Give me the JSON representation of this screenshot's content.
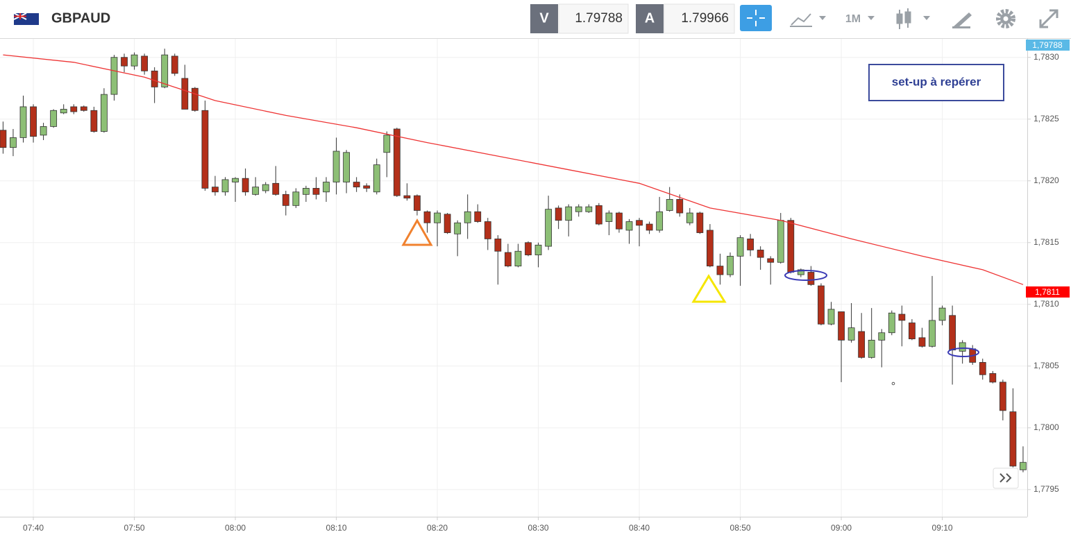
{
  "toolbar": {
    "symbol": "GBPAUD",
    "bid_label": "V",
    "bid": "1.79788",
    "ask_label": "A",
    "ask": "1.79966",
    "timeframe": "1M"
  },
  "chart_data": {
    "type": "candlestick",
    "categories": [
      "07:37",
      "07:38",
      "07:39",
      "07:40",
      "07:41",
      "07:42",
      "07:43",
      "07:44",
      "07:45",
      "07:46",
      "07:47",
      "07:48",
      "07:49",
      "07:50",
      "07:51",
      "07:52",
      "07:53",
      "07:54",
      "07:55",
      "07:56",
      "07:57",
      "07:58",
      "07:59",
      "08:00",
      "08:01",
      "08:02",
      "08:03",
      "08:04",
      "08:05",
      "08:06",
      "08:07",
      "08:08",
      "08:09",
      "08:10",
      "08:11",
      "08:12",
      "08:13",
      "08:14",
      "08:15",
      "08:16",
      "08:17",
      "08:18",
      "08:19",
      "08:20",
      "08:21",
      "08:22",
      "08:23",
      "08:24",
      "08:25",
      "08:26",
      "08:27",
      "08:28",
      "08:29",
      "08:30",
      "08:31",
      "08:32",
      "08:33",
      "08:34",
      "08:35",
      "08:36",
      "08:37",
      "08:38",
      "08:39",
      "08:40",
      "08:41",
      "08:42",
      "08:43",
      "08:44",
      "08:45",
      "08:46",
      "08:47",
      "08:48",
      "08:49",
      "08:50",
      "08:51",
      "08:52",
      "08:53",
      "08:54",
      "08:55",
      "08:56",
      "08:57",
      "08:58",
      "08:59",
      "09:00",
      "09:01",
      "09:02",
      "09:03",
      "09:04",
      "09:05",
      "09:06",
      "09:07",
      "09:08",
      "09:09",
      "09:10",
      "09:11",
      "09:12",
      "09:13",
      "09:14",
      "09:15",
      "09:16",
      "09:17",
      "09:18"
    ],
    "open": [
      1.78241,
      1.78227,
      1.78235,
      1.7826,
      1.78237,
      1.78244,
      1.78255,
      1.7826,
      1.7826,
      1.78257,
      1.7824,
      1.7827,
      1.783,
      1.78293,
      1.78301,
      1.78289,
      1.78276,
      1.78301,
      1.78283,
      1.78275,
      1.78257,
      1.78195,
      1.78191,
      1.78199,
      1.78202,
      1.78189,
      1.78192,
      1.78198,
      1.78189,
      1.7818,
      1.78189,
      1.78194,
      1.78191,
      1.78199,
      1.78199,
      1.78199,
      1.78196,
      1.78191,
      1.78223,
      1.78242,
      1.78188,
      1.78188,
      1.78175,
      1.78166,
      1.78173,
      1.78157,
      1.78166,
      1.78175,
      1.78167,
      1.78153,
      1.78142,
      1.78131,
      1.7815,
      1.7814,
      1.78147,
      1.78178,
      1.78168,
      1.78175,
      1.78175,
      1.7818,
      1.78167,
      1.78174,
      1.7816,
      1.78168,
      1.78165,
      1.7816,
      1.78176,
      1.78185,
      1.78166,
      1.78174,
      1.7816,
      1.78131,
      1.78124,
      1.78139,
      1.78153,
      1.78144,
      1.78137,
      1.78134,
      1.78168,
      1.78124,
      1.78126,
      1.78115,
      1.78084,
      1.78094,
      1.78071,
      1.78078,
      1.78057,
      1.78071,
      1.78077,
      1.78092,
      1.78085,
      1.78073,
      1.78066,
      1.78087,
      1.78091,
      1.78062,
      1.78064,
      1.78053,
      1.78044,
      1.78037,
      1.78013,
      1.77966
    ],
    "high": [
      1.78248,
      1.78242,
      1.78269,
      1.78262,
      1.78247,
      1.78258,
      1.78262,
      1.78262,
      1.78261,
      1.7826,
      1.78275,
      1.78302,
      1.78303,
      1.78304,
      1.78303,
      1.78292,
      1.78307,
      1.78303,
      1.78294,
      1.78276,
      1.78265,
      1.78204,
      1.78203,
      1.78203,
      1.7821,
      1.78203,
      1.78199,
      1.78212,
      1.78192,
      1.78194,
      1.78196,
      1.78203,
      1.78203,
      1.78235,
      1.78225,
      1.78203,
      1.78198,
      1.78218,
      1.7824,
      1.78243,
      1.78198,
      1.78189,
      1.78176,
      1.78176,
      1.78174,
      1.78168,
      1.78189,
      1.78181,
      1.7817,
      1.78156,
      1.78149,
      1.78149,
      1.78151,
      1.7815,
      1.78188,
      1.7818,
      1.78181,
      1.78181,
      1.78181,
      1.78182,
      1.78176,
      1.78175,
      1.78169,
      1.7817,
      1.78167,
      1.78187,
      1.78195,
      1.78189,
      1.78178,
      1.78175,
      1.78165,
      1.78141,
      1.78142,
      1.78156,
      1.78157,
      1.78147,
      1.78139,
      1.78174,
      1.7817,
      1.78129,
      1.78131,
      1.78117,
      1.78102,
      1.78094,
      1.78101,
      1.78093,
      1.78097,
      1.7808,
      1.78095,
      1.78099,
      1.78088,
      1.78081,
      1.78123,
      1.78099,
      1.78099,
      1.78071,
      1.78067,
      1.78056,
      1.78046,
      1.78039,
      1.78032,
      1.77985
    ],
    "low": [
      1.78222,
      1.7822,
      1.78231,
      1.78231,
      1.78233,
      1.78243,
      1.78254,
      1.78254,
      1.78256,
      1.78239,
      1.78239,
      1.78265,
      1.78288,
      1.7829,
      1.78286,
      1.78263,
      1.78275,
      1.78285,
      1.78258,
      1.78256,
      1.78192,
      1.78188,
      1.78188,
      1.78183,
      1.78188,
      1.78188,
      1.7819,
      1.78188,
      1.78172,
      1.78178,
      1.78183,
      1.78185,
      1.78183,
      1.78189,
      1.7819,
      1.78191,
      1.78191,
      1.78189,
      1.78203,
      1.78187,
      1.78184,
      1.78172,
      1.78158,
      1.78147,
      1.78157,
      1.78139,
      1.78153,
      1.78166,
      1.78144,
      1.78116,
      1.7813,
      1.7813,
      1.78139,
      1.7813,
      1.78144,
      1.78161,
      1.78155,
      1.78171,
      1.78174,
      1.78164,
      1.78156,
      1.78158,
      1.78149,
      1.78147,
      1.78157,
      1.78158,
      1.78175,
      1.78171,
      1.78164,
      1.78157,
      1.7813,
      1.78116,
      1.78122,
      1.78115,
      1.78139,
      1.78128,
      1.78116,
      1.78133,
      1.78125,
      1.78122,
      1.78115,
      1.78083,
      1.78083,
      1.78037,
      1.78069,
      1.78056,
      1.78056,
      1.78049,
      1.78075,
      1.78066,
      1.78071,
      1.78065,
      1.78065,
      1.78083,
      1.78035,
      1.78052,
      1.78051,
      1.78039,
      1.78036,
      1.78006,
      1.77968,
      1.77964
    ],
    "close": [
      1.78227,
      1.78235,
      1.7826,
      1.78236,
      1.78244,
      1.78257,
      1.78258,
      1.78256,
      1.78257,
      1.7824,
      1.7827,
      1.783,
      1.78293,
      1.78302,
      1.78289,
      1.78276,
      1.78302,
      1.78287,
      1.78258,
      1.78257,
      1.78194,
      1.78191,
      1.78201,
      1.78202,
      1.78191,
      1.78195,
      1.78197,
      1.78189,
      1.7818,
      1.78191,
      1.78194,
      1.78189,
      1.78199,
      1.78224,
      1.78223,
      1.78195,
      1.78194,
      1.78213,
      1.78237,
      1.78188,
      1.78186,
      1.78176,
      1.78166,
      1.78174,
      1.78158,
      1.78166,
      1.78175,
      1.78167,
      1.78153,
      1.78143,
      1.78131,
      1.78143,
      1.7814,
      1.78148,
      1.78177,
      1.78168,
      1.78179,
      1.78179,
      1.78179,
      1.78165,
      1.78174,
      1.78161,
      1.78167,
      1.78164,
      1.7816,
      1.78175,
      1.78185,
      1.78174,
      1.78174,
      1.78158,
      1.78131,
      1.78124,
      1.78139,
      1.78154,
      1.78144,
      1.78138,
      1.78134,
      1.78168,
      1.78126,
      1.78128,
      1.78116,
      1.78084,
      1.78096,
      1.78071,
      1.78081,
      1.78057,
      1.78071,
      1.78077,
      1.78093,
      1.78087,
      1.78072,
      1.78066,
      1.78087,
      1.78097,
      1.78063,
      1.78069,
      1.78053,
      1.78043,
      1.78037,
      1.78014,
      1.77969,
      1.77972
    ],
    "up_color": "#8dbf76",
    "down_color": "#b3301a",
    "moving_average": {
      "color": "#ee3333",
      "x": [
        "07:37",
        "07:44",
        "07:51",
        "07:58",
        "08:05",
        "08:12",
        "08:19",
        "08:26",
        "08:33",
        "08:40",
        "08:47",
        "08:54",
        "09:01",
        "09:08",
        "09:14",
        "09:18"
      ],
      "values": [
        1.78302,
        1.78296,
        1.78284,
        1.78265,
        1.78253,
        1.78243,
        1.78231,
        1.7822,
        1.78209,
        1.78198,
        1.78178,
        1.78168,
        1.78153,
        1.78139,
        1.78128,
        1.78116
      ]
    },
    "ylim": [
      1.77928,
      1.78315
    ],
    "yticks": [
      {
        "value": 1.783,
        "label": "1,7830"
      },
      {
        "value": 1.7825,
        "label": "1,7825"
      },
      {
        "value": 1.782,
        "label": "1,7820"
      },
      {
        "value": 1.7815,
        "label": "1,7815"
      },
      {
        "value": 1.781,
        "label": "1,7810"
      },
      {
        "value": 1.7805,
        "label": "1,7805"
      },
      {
        "value": 1.78,
        "label": "1,7800"
      },
      {
        "value": 1.7795,
        "label": "1,7795"
      }
    ],
    "xticks": [
      "07:40",
      "07:50",
      "08:00",
      "08:10",
      "08:20",
      "08:30",
      "08:40",
      "08:50",
      "09:00",
      "09:10"
    ],
    "grid": true,
    "price_tags": [
      {
        "value": 1.79788,
        "label": "1,79788",
        "color": "#5ab9e6"
      },
      {
        "value": 1.7811,
        "label": "1,7811",
        "color": "#ff0000"
      }
    ],
    "annotation": "set-up à repérer"
  }
}
